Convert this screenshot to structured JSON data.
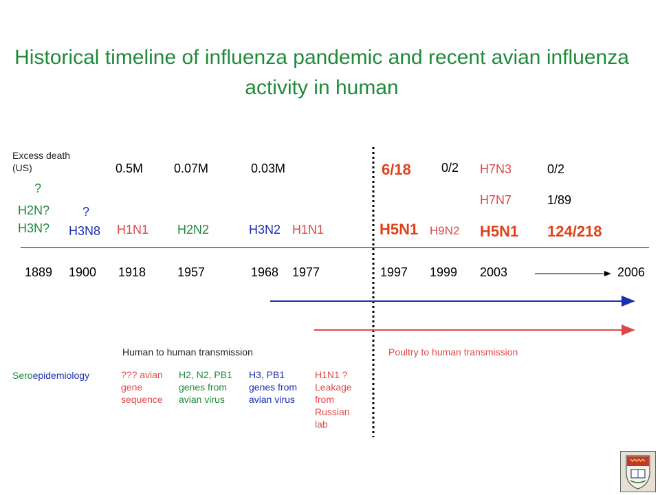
{
  "slide": {
    "title": "Historical timeline of influenza pandemic and recent avian influenza activity in human"
  },
  "excess_death": {
    "label": "Excess death (US)",
    "values": [
      "0.5M",
      "0.07M",
      "0.03M"
    ]
  },
  "early_pandemics": {
    "q1889": "?",
    "h2n": "H2N?",
    "h3n": "H3N?",
    "q1900": "?",
    "h3n8": "H3N8"
  },
  "pandemics": [
    {
      "subtype": "H1N1",
      "year": "1918"
    },
    {
      "subtype": "H2N2",
      "year": "1957"
    },
    {
      "subtype": "H3N2",
      "year": "1968"
    },
    {
      "subtype": "H1N1",
      "year": "1977"
    }
  ],
  "avian": {
    "h5n1_1997_ratio": "6/18",
    "h5n1_1997": "H5N1",
    "h9n2_1999_ratio": "0/2",
    "h9n2_1999": "H9N2",
    "h7n3": "H7N3",
    "h7n3_ratio": "0/2",
    "h7n7": "H7N7",
    "h7n7_ratio": "1/89",
    "h5n1_2003": "H5N1",
    "h5n1_2003_ratio": "124/218"
  },
  "years": {
    "y1889": "1889",
    "y1900": "1900",
    "y1997": "1997",
    "y1999": "1999",
    "y2003": "2003",
    "y2006": "2006"
  },
  "transmission": {
    "human": "Human to human transmission",
    "poultry": "Poultry to human transmission"
  },
  "sero": {
    "label_a": "Sero",
    "label_b": "epidemiology",
    "n1918": "??? avian gene sequence",
    "n1957": "H2, N2, PB1 genes from avian virus",
    "n1968": "H3, PB1 genes from avian virus",
    "n1977": "H1N1 ? Leakage from Russian lab"
  },
  "colors": {
    "title_green": "#1f8a3a",
    "blue": "#1a2fb0",
    "pink": "#e04848",
    "orange_red": "#e0401a"
  }
}
